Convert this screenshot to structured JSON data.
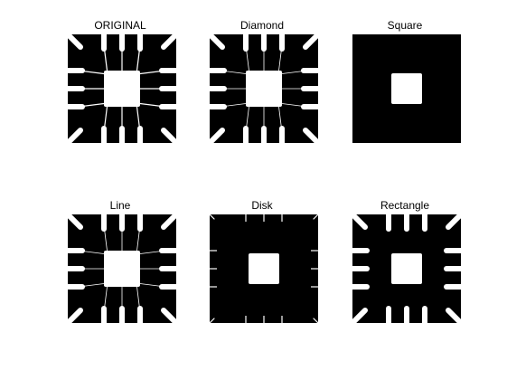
{
  "figure": {
    "panels": [
      {
        "title": "ORIGINAL",
        "variant": "original"
      },
      {
        "title": "Diamond",
        "variant": "diamond"
      },
      {
        "title": "Square",
        "variant": "square"
      },
      {
        "title": "Line",
        "variant": "line"
      },
      {
        "title": "Disk",
        "variant": "disk"
      },
      {
        "title": "Rectangle",
        "variant": "rectangle"
      }
    ],
    "colors": {
      "foreground": "#000000",
      "background": "#ffffff"
    }
  }
}
